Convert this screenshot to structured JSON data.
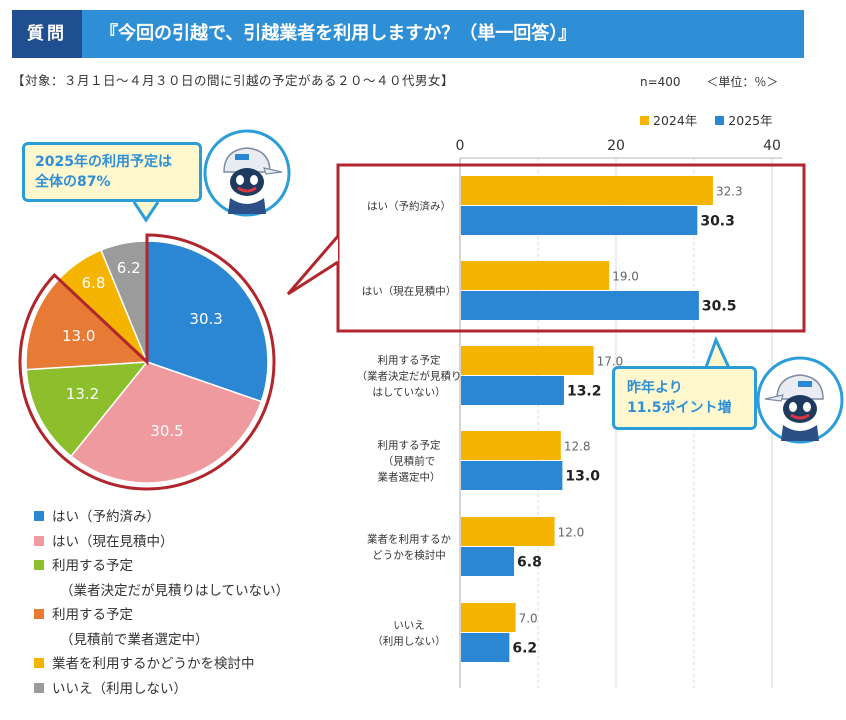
{
  "header": {
    "tag": "質問",
    "question": "『今回の引越で、引越業者を利用しますか？（単一回答）』"
  },
  "subject": "【対象：３月１日～４月３０日の間に引越の予定がある２０～４０代男女】",
  "sample": "n=400",
  "unit": "＜単位：％＞",
  "callout_left": {
    "line1": "2025年の利用予定は",
    "line2": "全体の87%"
  },
  "callout_right": {
    "line1": "昨年より",
    "line2": "11.5ポイント増"
  },
  "colors": {
    "y2024": "#f5b400",
    "y2025": "#2b87d4",
    "highlight": "#b0262c",
    "pie": [
      "#2b87d4",
      "#ee9a9e",
      "#8cbf2b",
      "#e77a34",
      "#f5b400",
      "#9b9b9b"
    ]
  },
  "chart_data": [
    {
      "type": "pie",
      "title": "2025年",
      "labels": [
        "はい（予約済み）",
        "はい（現在見積中）",
        "利用する予定（業者決定だが見積りはしていない）",
        "利用する予定（見積前で業者選定中）",
        "業者を利用するかどうかを検討中",
        "いいえ（利用しない）"
      ],
      "values": [
        30.3,
        30.5,
        13.2,
        13.0,
        6.8,
        6.2
      ],
      "value_labels": [
        "30.3",
        "30.5",
        "13.2",
        "13.0",
        "6.8",
        "6.2"
      ],
      "highlighted_total": 87
    },
    {
      "type": "bar",
      "orientation": "horizontal",
      "categories": [
        [
          "はい（予約済み）"
        ],
        [
          "はい（現在見積中）"
        ],
        [
          "利用する予定",
          "（業者決定だが見積り",
          "はしていない）"
        ],
        [
          "利用する予定",
          "（見積前で",
          "業者選定中）"
        ],
        [
          "業者を利用するか",
          "どうかを検討中"
        ],
        [
          "いいえ",
          "（利用しない）"
        ]
      ],
      "series": [
        {
          "name": "2024年",
          "values": [
            32.3,
            19.0,
            17.0,
            12.8,
            12.0,
            7.0
          ],
          "labels": [
            "32.3",
            "19.0",
            "17.0",
            "12.8",
            "12.0",
            "7.0"
          ]
        },
        {
          "name": "2025年",
          "values": [
            30.3,
            30.5,
            13.2,
            13.0,
            6.8,
            6.2
          ],
          "labels": [
            "30.3",
            "30.5",
            "13.2",
            "13.0",
            "6.8",
            "6.2"
          ]
        }
      ],
      "xlim": [
        0,
        40
      ],
      "xticks": [
        "0",
        "20",
        "40"
      ],
      "ticks_values": [
        0,
        20,
        40
      ],
      "gridlines": [
        0,
        10,
        20,
        30,
        40
      ],
      "highlighted_categories": [
        0,
        1
      ]
    }
  ],
  "pie_legend": [
    {
      "lines": [
        "はい（予約済み）"
      ]
    },
    {
      "lines": [
        "はい（現在見積中）"
      ]
    },
    {
      "lines": [
        "利用する予定",
        "（業者決定だが見積りはしていない）"
      ]
    },
    {
      "lines": [
        "利用する予定",
        "（見積前で業者選定中）"
      ]
    },
    {
      "lines": [
        "業者を利用するかどうかを検討中"
      ]
    },
    {
      "lines": [
        "いいえ（利用しない）"
      ]
    }
  ]
}
